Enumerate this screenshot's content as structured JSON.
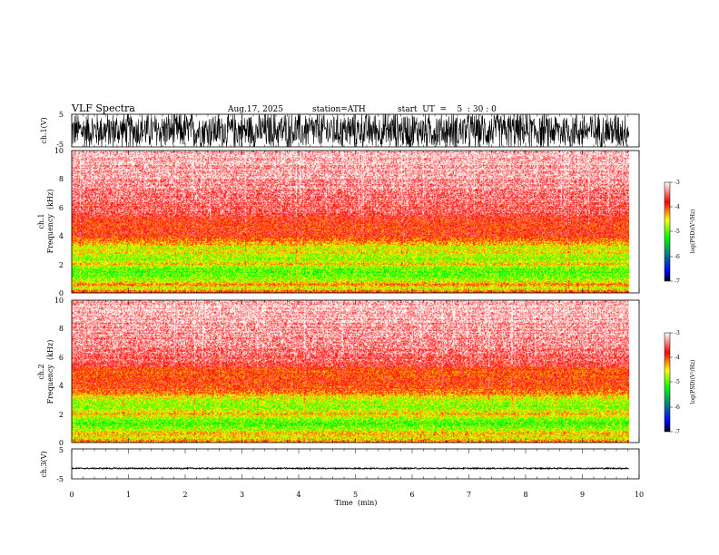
{
  "header": {
    "title": "VLF  Spectra",
    "date": "Aug.17, 2025",
    "station": "station=ATH",
    "start": "start  UT  =    5  : 30 : 0"
  },
  "chart_data": [
    {
      "type": "line",
      "name": "ch1-waveform",
      "ylabel": "ch.1(V)",
      "ylim": [
        -5,
        5
      ],
      "yticks": [
        "5",
        "-5"
      ],
      "xlim": [
        0,
        10
      ],
      "amplitude_approx": 5,
      "signal": "broadband noise, saturating +/-5 V"
    },
    {
      "type": "heatmap",
      "name": "ch1-spectrogram",
      "ylabel_line1": "ch.1",
      "ylabel_line2": "Frequency  (kHz)",
      "ylim": [
        0,
        10
      ],
      "yticks": [
        "0",
        "2",
        "4",
        "6",
        "8",
        "10"
      ],
      "xlim": [
        0,
        10
      ],
      "data_end_min": 9.82,
      "band_profile_khz_logpsd": [
        [
          0,
          -4.0
        ],
        [
          0.3,
          -4.7
        ],
        [
          0.6,
          -4.2
        ],
        [
          0.9,
          -4.8
        ],
        [
          1.2,
          -5.1
        ],
        [
          1.6,
          -5.0
        ],
        [
          2.0,
          -4.5
        ],
        [
          2.4,
          -4.9
        ],
        [
          2.8,
          -4.6
        ],
        [
          3.2,
          -4.7
        ],
        [
          3.5,
          -4.3
        ],
        [
          4.0,
          -3.9
        ],
        [
          5.0,
          -3.9
        ],
        [
          5.6,
          -3.6
        ],
        [
          7.0,
          -3.4
        ],
        [
          10.0,
          -3.2
        ]
      ],
      "colorbar": {
        "label": "log(PSD)(V²/Hz)",
        "range": [
          -7,
          -3
        ],
        "ticks": [
          "-3",
          "-4",
          "-5",
          "-6",
          "-7"
        ]
      }
    },
    {
      "type": "heatmap",
      "name": "ch2-spectrogram",
      "ylabel_line1": "ch.2",
      "ylabel_line2": "Frequency  (kHz)",
      "ylim": [
        0,
        10
      ],
      "yticks": [
        "0",
        "2",
        "4",
        "6",
        "8",
        "10"
      ],
      "xlim": [
        0,
        10
      ],
      "data_end_min": 9.82,
      "band_profile_khz_logpsd": [
        [
          0,
          -4.1
        ],
        [
          0.3,
          -4.6
        ],
        [
          0.6,
          -4.3
        ],
        [
          0.9,
          -4.8
        ],
        [
          1.2,
          -5.1
        ],
        [
          1.6,
          -5.0
        ],
        [
          2.0,
          -4.4
        ],
        [
          2.4,
          -4.9
        ],
        [
          2.8,
          -4.7
        ],
        [
          3.2,
          -4.6
        ],
        [
          3.5,
          -4.2
        ],
        [
          4.0,
          -3.9
        ],
        [
          5.0,
          -4.0
        ],
        [
          5.6,
          -3.6
        ],
        [
          7.0,
          -3.4
        ],
        [
          10.0,
          -3.2
        ]
      ],
      "colorbar": {
        "label": "log(PSD)(V²/Hz)",
        "range": [
          -7,
          -3
        ],
        "ticks": [
          "-3",
          "-4",
          "-5",
          "-6",
          "-7"
        ]
      }
    },
    {
      "type": "line",
      "name": "ch3-waveform",
      "ylabel": "ch.3(V)",
      "ylim": [
        -5,
        5
      ],
      "yticks": [
        "5",
        "-5"
      ],
      "xlim": [
        0,
        10
      ],
      "mean_v": -1.5,
      "amplitude_approx": 0.2
    }
  ],
  "x_axis": {
    "label": "Time  (min)",
    "ticks": [
      "0",
      "1",
      "2",
      "3",
      "4",
      "5",
      "6",
      "7",
      "8",
      "9",
      "10"
    ]
  },
  "colors": {
    "colormap": [
      "#000000",
      "#0000ff",
      "#00ff00",
      "#ffff00",
      "#ff0000",
      "#ffffff"
    ],
    "trace": "#000000"
  }
}
